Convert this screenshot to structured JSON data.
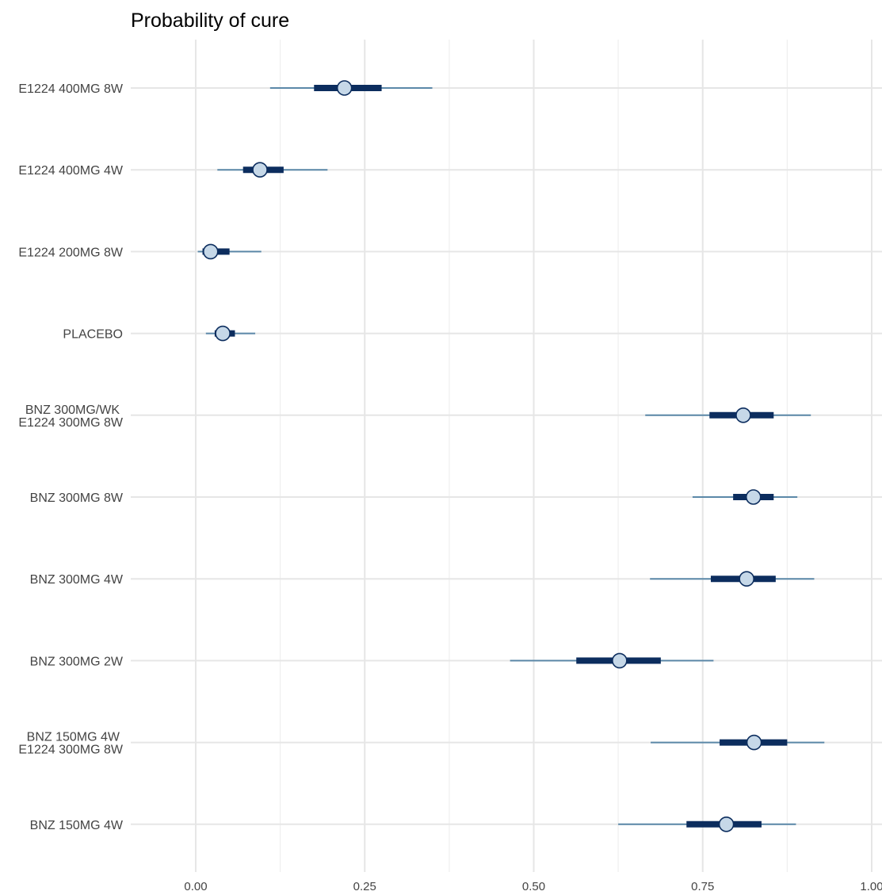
{
  "chart_data": {
    "type": "forest",
    "title": "Probability of cure",
    "xlabel": "",
    "ylabel": "",
    "xlim": [
      -0.09,
      1.0
    ],
    "x_ticks": [
      "0.00",
      "0.25",
      "0.50",
      "0.75",
      "1.00"
    ],
    "x_tick_values": [
      0,
      0.25,
      0.5,
      0.75,
      1.0
    ],
    "grid": true,
    "colors": {
      "outer_interval": "#5b88a8",
      "inner_interval": "#0c2d5e",
      "point_fill": "#c6d8e8",
      "point_stroke": "#0c2d5e",
      "grid": "#e6e6e6"
    },
    "rows": [
      {
        "label": "E1224 400MG 8W",
        "median": 0.22,
        "inner": [
          0.175,
          0.275
        ],
        "outer": [
          0.11,
          0.35
        ]
      },
      {
        "label": "E1224 400MG 4W",
        "median": 0.095,
        "inner": [
          0.07,
          0.13
        ],
        "outer": [
          0.032,
          0.195
        ]
      },
      {
        "label": "E1224 200MG 8W",
        "median": 0.022,
        "inner": [
          0.01,
          0.05
        ],
        "outer": [
          0.003,
          0.097
        ]
      },
      {
        "label": "PLACEBO",
        "median": 0.04,
        "inner": [
          0.028,
          0.058
        ],
        "outer": [
          0.015,
          0.088
        ]
      },
      {
        "label": "BNZ 300MG/WK\nE1224 300MG 8W",
        "median": 0.81,
        "inner": [
          0.76,
          0.855
        ],
        "outer": [
          0.665,
          0.91
        ]
      },
      {
        "label": "BNZ 300MG 8W",
        "median": 0.825,
        "inner": [
          0.795,
          0.855
        ],
        "outer": [
          0.735,
          0.89
        ]
      },
      {
        "label": "BNZ 300MG 4W",
        "median": 0.815,
        "inner": [
          0.762,
          0.858
        ],
        "outer": [
          0.672,
          0.915
        ]
      },
      {
        "label": "BNZ 300MG 2W",
        "median": 0.627,
        "inner": [
          0.563,
          0.688
        ],
        "outer": [
          0.465,
          0.766
        ]
      },
      {
        "label": "BNZ 150MG 4W\nE1224 300MG 8W",
        "median": 0.826,
        "inner": [
          0.775,
          0.875
        ],
        "outer": [
          0.673,
          0.93
        ]
      },
      {
        "label": "BNZ 150MG 4W",
        "median": 0.785,
        "inner": [
          0.726,
          0.837
        ],
        "outer": [
          0.625,
          0.888
        ]
      }
    ]
  }
}
